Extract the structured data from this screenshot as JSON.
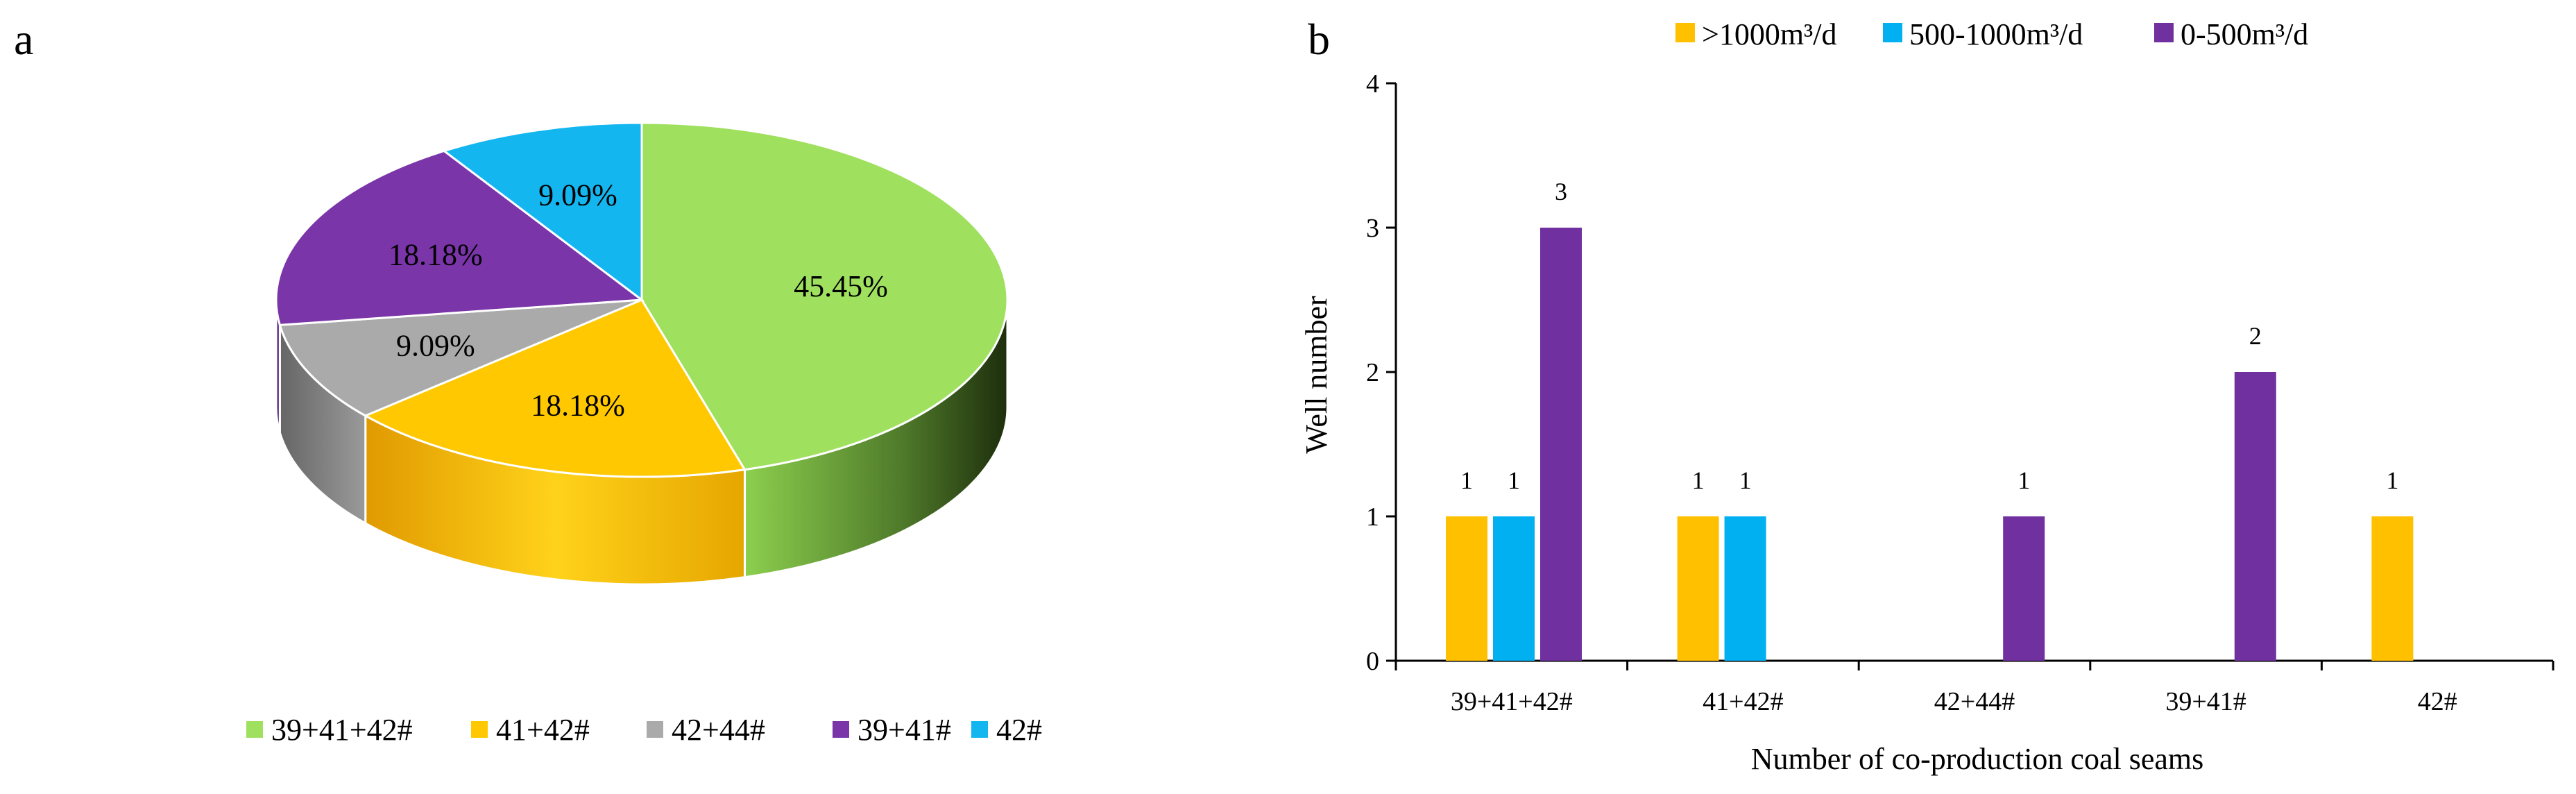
{
  "panel_a_label": "a",
  "panel_b_label": "b",
  "chart_data": [
    {
      "type": "pie",
      "panel": "a",
      "style": "3d",
      "categories": [
        "39+41+42#",
        "41+42#",
        "42+44#",
        "39+41#",
        "42#"
      ],
      "values": [
        45.45,
        18.18,
        9.09,
        18.18,
        9.09
      ],
      "labels": [
        "45.45%",
        "18.18%",
        "9.09%",
        "18.18%",
        "9.09%"
      ],
      "colors": [
        "#9fe05e",
        "#ffc800",
        "#aaaaaa",
        "#7a35a8",
        "#14b6f0"
      ],
      "side_colors": [
        "#5a8a30",
        "#e8a800",
        "#808080",
        "#5a2a80",
        "#0e8ac0"
      ],
      "legend_position": "bottom"
    },
    {
      "type": "bar",
      "panel": "b",
      "categories": [
        "39+41+42#",
        "41+42#",
        "42+44#",
        "39+41#",
        "42#"
      ],
      "series": [
        {
          "name": ">1000m³/d",
          "color": "#ffc000",
          "values": [
            1,
            1,
            0,
            0,
            1
          ]
        },
        {
          "name": "500-1000m³/d",
          "color": "#00b0f0",
          "values": [
            1,
            1,
            0,
            0,
            0
          ]
        },
        {
          "name": "0-500m³/d",
          "color": "#7030a0",
          "values": [
            3,
            0,
            1,
            2,
            0
          ]
        }
      ],
      "xlabel": "Number of co-production coal seams",
      "ylabel": "Well number",
      "ylim": [
        0,
        4
      ],
      "yticks": [
        "0",
        "1",
        "2",
        "3",
        "4"
      ],
      "legend_position": "top",
      "grid": false
    }
  ]
}
